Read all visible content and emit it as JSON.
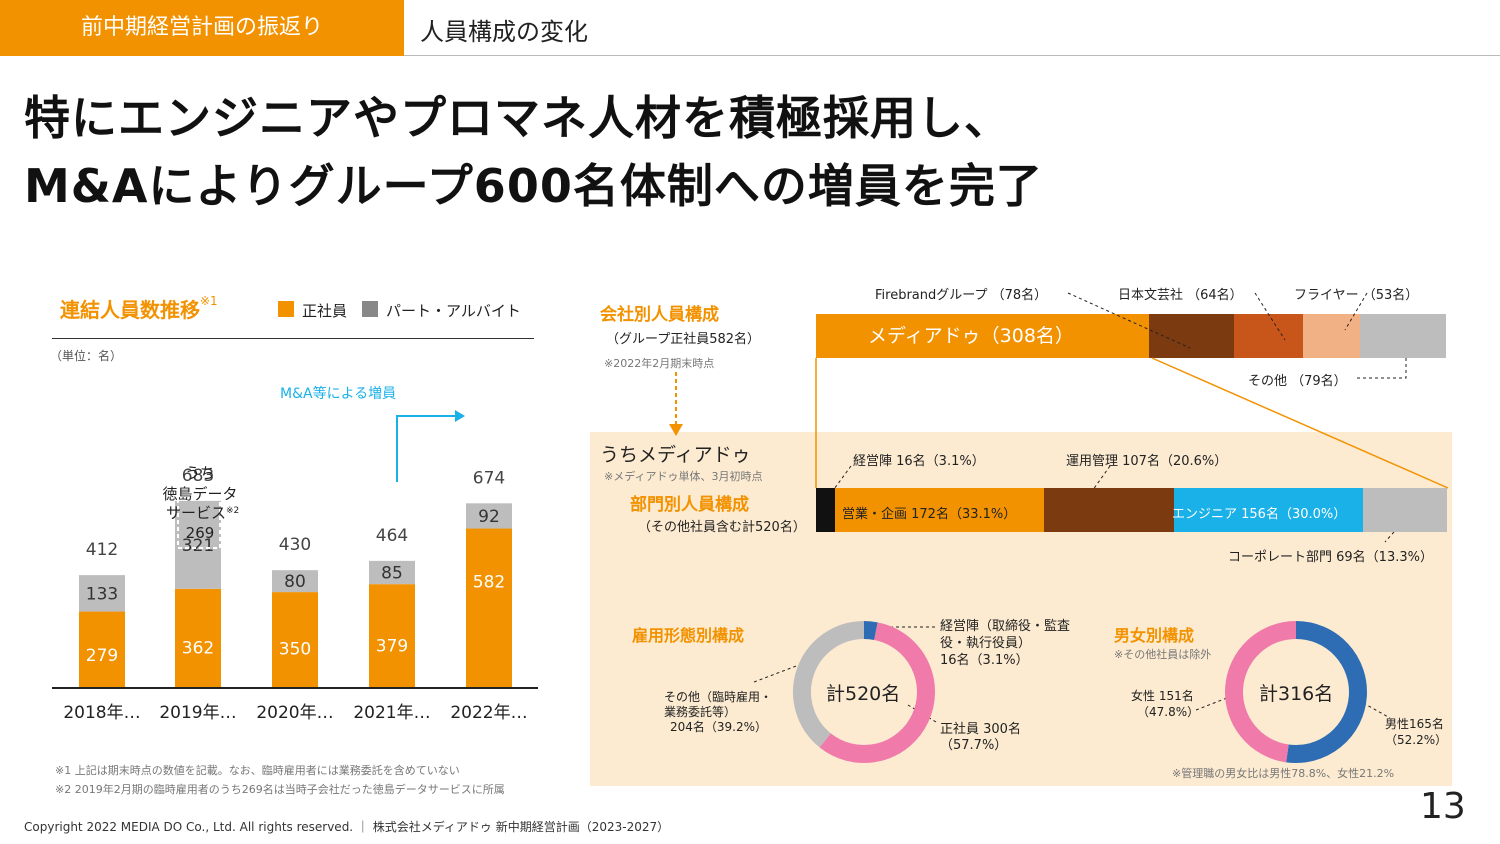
{
  "header": {
    "tag": "前中期経営計画の振返り",
    "subtitle": "人員構成の変化"
  },
  "headline": {
    "line1": "特にエンジニアやプロマネ人材を積極採用し、",
    "line2": "M&Aによりグループ600名体制への増員を完了"
  },
  "left_chart": {
    "title": "連結人員数推移",
    "title_note": "※1",
    "legend": [
      {
        "label": "正社員",
        "color": "#f39200"
      },
      {
        "label": "パート・アルバイト",
        "color": "#888888"
      }
    ],
    "unit": "（単位：名）",
    "annotation": "M&A等による増員",
    "tokushima": {
      "line1": "うち",
      "line2": "徳島データ",
      "line3": "サービス",
      "note": "※2",
      "value": "269"
    },
    "footnote1": "※1 上記は期末時点の数値を記載。なお、臨時雇用者には業務委託を含めていない",
    "footnote2": "※2 2019年2月期の臨時雇用者のうち269名は当時子会社だった徳島データサービスに所属"
  },
  "chart_data": {
    "type": "bar",
    "categories": [
      "2018年…",
      "2019年…",
      "2020年…",
      "2021年…",
      "2022年…"
    ],
    "series": [
      {
        "name": "正社員",
        "values": [
          279,
          362,
          350,
          379,
          582
        ]
      },
      {
        "name": "パート・アルバイト",
        "values": [
          133,
          321,
          80,
          85,
          92
        ]
      }
    ],
    "totals": [
      412,
      683,
      430,
      464,
      674
    ]
  },
  "company": {
    "title": "会社別人員構成",
    "subtitle": "（グループ正社員582名）",
    "note": "※2022年2月期末時点",
    "segments": [
      {
        "label": "メディアドゥ（308名）",
        "value": 308,
        "color": "#f39200"
      },
      {
        "label": "Firebrandグループ （78名）",
        "value": 78,
        "color": "#7b3a10"
      },
      {
        "label": "日本文芸社 （64名）",
        "value": 64,
        "color": "#c8561a"
      },
      {
        "label": "フライヤー （53名）",
        "value": 53,
        "color": "#f2b085"
      },
      {
        "label": "その他 （79名）",
        "value": 79,
        "color": "#bdbdbd"
      }
    ]
  },
  "mediado": {
    "title": "うちメディアドゥ",
    "note": "※メディアドゥ単体、3月初時点",
    "dept_title": "部門別人員構成",
    "dept_subtitle": "（その他社員含む計520名）",
    "segments": [
      {
        "label": "経営陣 16名（3.1%）",
        "value": 16,
        "color": "#111111"
      },
      {
        "label": "営業・企画 172名（33.1%）",
        "value": 172,
        "color": "#f39200"
      },
      {
        "label": "運用管理 107名（20.6%）",
        "value": 107,
        "color": "#7b3a10"
      },
      {
        "label": "エンジニア 156名（30.0%）",
        "value": 156,
        "color": "#1ab1e8"
      },
      {
        "label": "コーポレート部門 69名（13.3%）",
        "value": 69,
        "color": "#bdbdbd"
      }
    ]
  },
  "employment": {
    "title": "雇用形態別構成",
    "center": "計520名",
    "segments": [
      {
        "label1": "経営陣（取締役・監査",
        "label2": "役・執行役員）",
        "label3": "16名（3.1%）",
        "value": 16,
        "color": "#2e6db4"
      },
      {
        "label1": "正社員 300名",
        "label2": "（57.7%）",
        "label3": "",
        "value": 300,
        "color": "#f07aaa"
      },
      {
        "label1": "その他（臨時雇用・",
        "label2": "業務委託等）",
        "label3": "204名（39.2%）",
        "value": 204,
        "color": "#bdbdbd"
      }
    ]
  },
  "gender": {
    "title": "男女別構成",
    "note": "※その他社員は除外",
    "center": "計316名",
    "segments": [
      {
        "label1": "男性165名",
        "label2": "（52.2%）",
        "value": 165,
        "color": "#2e6db4"
      },
      {
        "label1": "女性 151名",
        "label2": "（47.8%）",
        "value": 151,
        "color": "#f07aaa"
      }
    ],
    "mgmt_note": "※管理職の男女比は男性78.8%、女性21.2%"
  },
  "footer": {
    "copyright": "Copyright 2022 MEDIA DO Co., Ltd. All rights reserved. ｜ 株式会社メディアドゥ 新中期経営計画（2023-2027）",
    "page": "13"
  }
}
